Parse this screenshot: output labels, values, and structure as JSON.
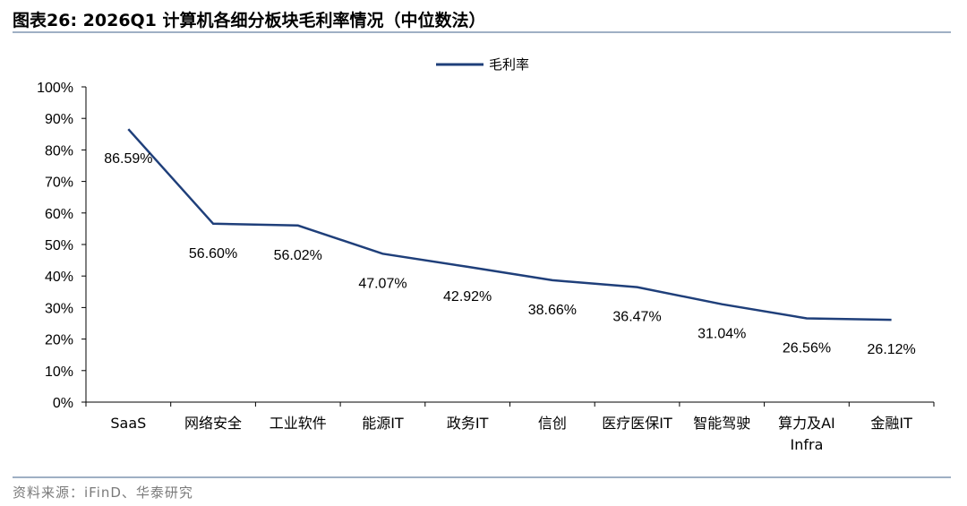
{
  "header": {
    "title": "图表26:  2026Q1 计算机各细分板块毛利率情况（中位数法）"
  },
  "footer": {
    "source": "资料来源：iFinD、华泰研究"
  },
  "chart_data": {
    "type": "line",
    "categories": [
      "SaaS",
      "网络安全",
      "工业软件",
      "能源IT",
      "政务IT",
      "信创",
      "医疗医保IT",
      "智能驾驶",
      "算力及AI Infra",
      "金融IT"
    ],
    "series": [
      {
        "name": "毛利率",
        "values": [
          86.59,
          56.6,
          56.02,
          47.07,
          42.92,
          38.66,
          36.47,
          31.04,
          26.56,
          26.12
        ]
      }
    ],
    "data_labels": [
      "86.59%",
      "56.60%",
      "56.02%",
      "47.07%",
      "42.92%",
      "38.66%",
      "36.47%",
      "31.04%",
      "26.56%",
      "26.12%"
    ],
    "y_ticks": [
      "0%",
      "10%",
      "20%",
      "30%",
      "40%",
      "50%",
      "60%",
      "70%",
      "80%",
      "90%",
      "100%"
    ],
    "ylim": [
      0,
      100
    ],
    "grid": false,
    "legend_position": "top-center",
    "line_color": "#1f3f7a"
  }
}
